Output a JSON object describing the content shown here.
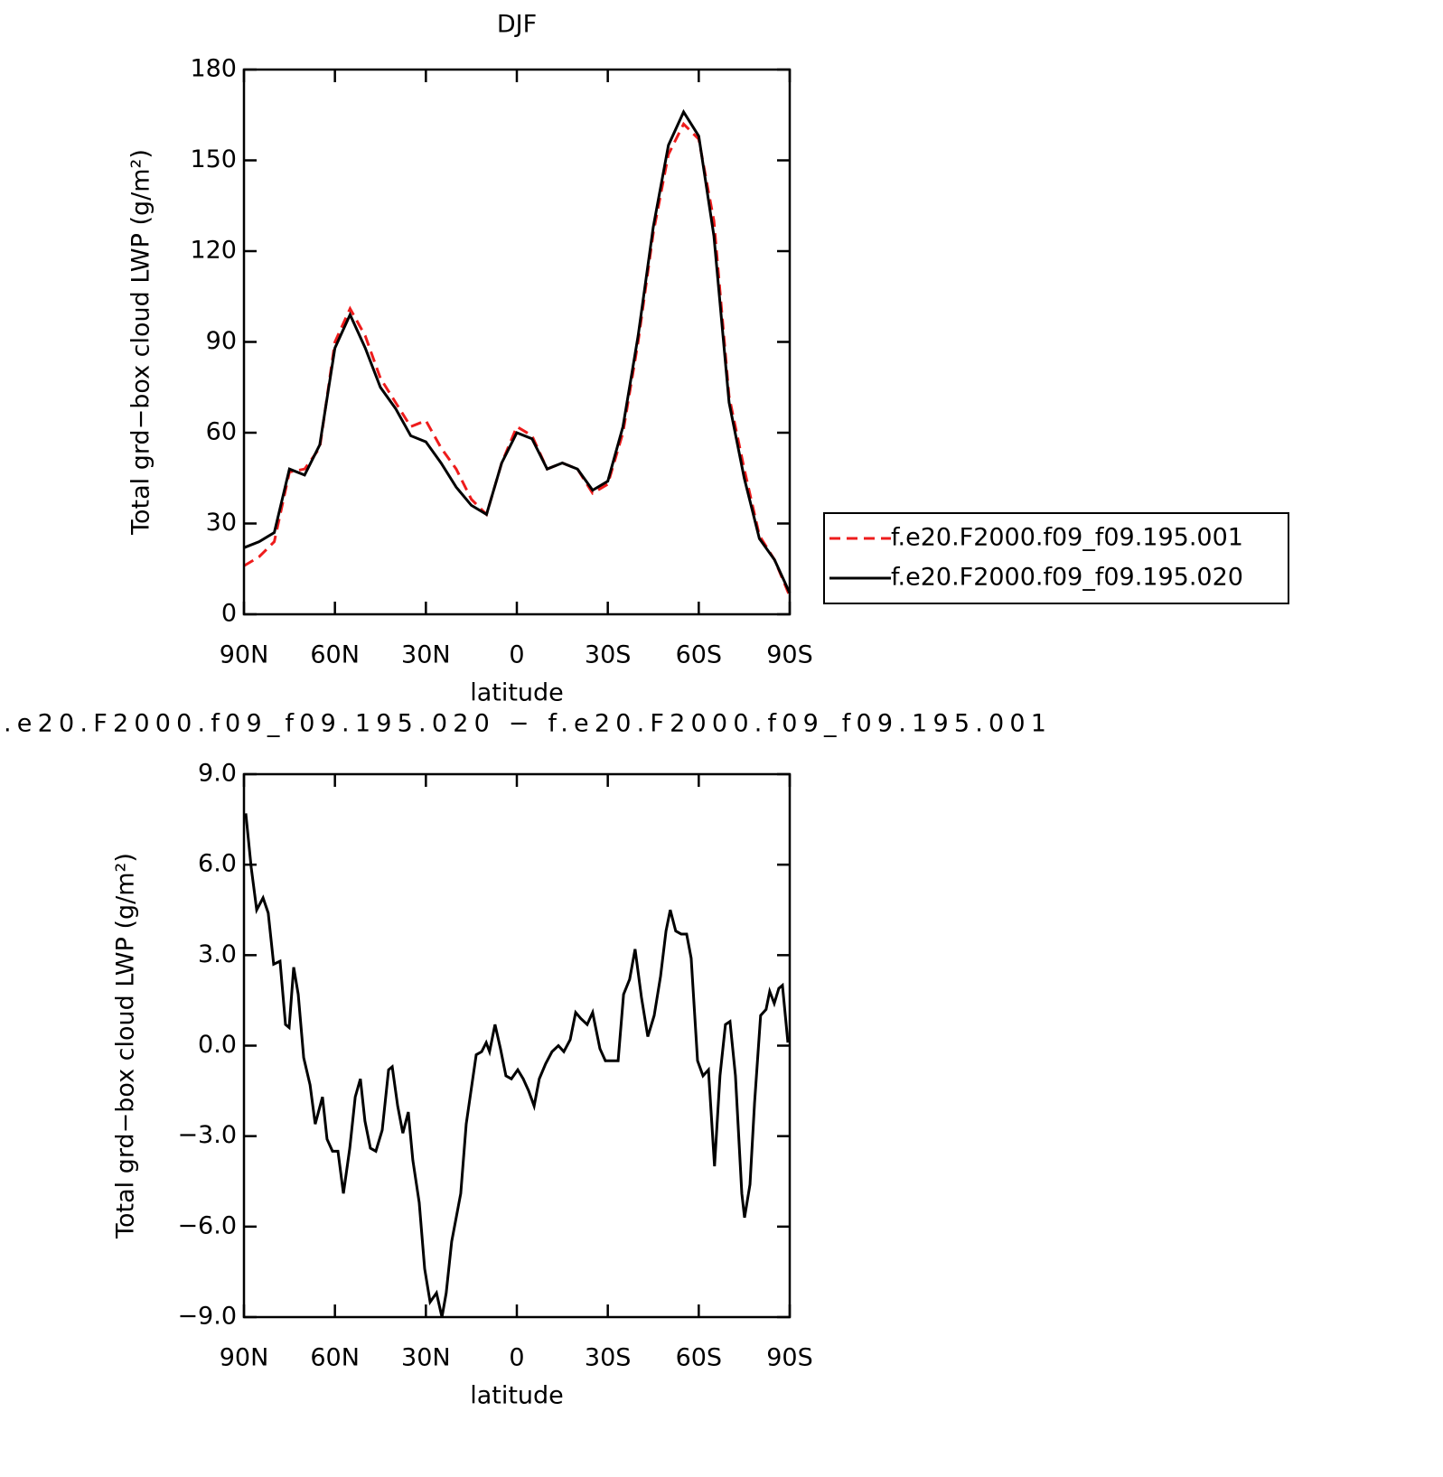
{
  "chart_data": [
    {
      "type": "line",
      "title": "DJF",
      "xlabel": "latitude",
      "ylabel": "Total grd−box cloud LWP (g/m²)",
      "x": [
        90,
        85,
        80,
        75,
        70,
        65,
        60,
        55,
        50,
        45,
        40,
        35,
        30,
        25,
        20,
        15,
        10,
        5,
        0,
        -5,
        -10,
        -15,
        -20,
        -25,
        -30,
        -35,
        -40,
        -45,
        -50,
        -55,
        -60,
        -65,
        -70,
        -75,
        -80,
        -85,
        -90
      ],
      "series": [
        {
          "name": "f.e20.F2000.f09_f09.195.001",
          "color": "#ee1c1c",
          "dashed": true,
          "values": [
            16,
            19,
            24,
            47,
            48,
            55,
            90,
            101,
            92,
            78,
            70,
            62,
            64,
            55,
            48,
            38,
            33,
            50,
            62,
            59,
            48,
            50,
            48,
            40,
            43,
            60,
            90,
            126,
            152,
            162,
            157,
            130,
            72,
            48,
            26,
            18,
            6
          ]
        },
        {
          "name": "f.e20.F2000.f09_f09.195.020",
          "color": "#000000",
          "dashed": false,
          "values": [
            22,
            24,
            27,
            48,
            46,
            56,
            88,
            99,
            88,
            75,
            68,
            59,
            57,
            50,
            42,
            36,
            33,
            50,
            60,
            58,
            48,
            50,
            48,
            41,
            44,
            62,
            92,
            128,
            155,
            166,
            158,
            125,
            70,
            45,
            25,
            18,
            7
          ]
        }
      ],
      "xlim": [
        90,
        -90
      ],
      "xticks": [
        {
          "value": 90,
          "label": "90N"
        },
        {
          "value": 60,
          "label": "60N"
        },
        {
          "value": 30,
          "label": "30N"
        },
        0,
        {
          "value": -30,
          "label": "30S"
        },
        {
          "value": -60,
          "label": "60S"
        },
        {
          "value": -90,
          "label": "90S"
        }
      ],
      "ylim": [
        0,
        180
      ],
      "yticks": [
        0,
        30,
        60,
        90,
        120,
        150,
        180
      ],
      "grid": false,
      "legend": "right"
    },
    {
      "type": "line",
      "title": ".e20.F2000.f09_f09.195.020 − f.e20.F2000.f09_f09.195.001",
      "xlabel": "latitude",
      "ylabel": "Total grd−box cloud LWP (g/m²)",
      "x": [
        89.4,
        87.6,
        85.8,
        83.7,
        82.0,
        80.2,
        78.1,
        76.3,
        75.1,
        73.6,
        72.1,
        70.3,
        68.2,
        66.5,
        64.1,
        62.6,
        60.8,
        59.0,
        57.2,
        55.1,
        53.3,
        51.6,
        50.1,
        48.3,
        46.5,
        44.4,
        42.3,
        41.1,
        39.3,
        37.6,
        35.8,
        34.3,
        32.2,
        30.4,
        28.6,
        26.5,
        24.7,
        23.3,
        21.5,
        18.5,
        16.7,
        13.4,
        11.6,
        10.1,
        9.0,
        7.2,
        5.4,
        3.6,
        1.8,
        -0.3,
        -2.1,
        -3.9,
        -5.7,
        -7.4,
        -9.5,
        -11.6,
        -13.7,
        -15.5,
        -17.6,
        -19.4,
        -21.1,
        -23.2,
        -25.0,
        -27.4,
        -29.2,
        -31.3,
        -33.4,
        -35.2,
        -37.2,
        -39.0,
        -41.1,
        -43.2,
        -45.3,
        -47.4,
        -49.2,
        -50.6,
        -52.4,
        -54.2,
        -56.0,
        -57.5,
        -59.6,
        -61.4,
        -63.2,
        -65.2,
        -67.0,
        -68.8,
        -70.3,
        -72.1,
        -74.2,
        -75.1,
        -76.9,
        -78.4,
        -80.4,
        -82.2,
        -83.4,
        -84.9,
        -86.4,
        -87.6,
        -89.4
      ],
      "values": [
        7.7,
        5.9,
        4.5,
        4.9,
        4.4,
        2.7,
        2.8,
        0.7,
        0.6,
        2.6,
        1.7,
        -0.4,
        -1.3,
        -2.6,
        -1.7,
        -3.1,
        -3.5,
        -3.5,
        -4.9,
        -3.4,
        -1.7,
        -1.1,
        -2.5,
        -3.4,
        -3.5,
        -2.8,
        -0.8,
        -0.7,
        -2.0,
        -2.9,
        -2.2,
        -3.8,
        -5.2,
        -7.4,
        -8.5,
        -8.2,
        -9.0,
        -8.2,
        -6.5,
        -4.9,
        -2.6,
        -0.3,
        -0.2,
        0.1,
        -0.2,
        0.7,
        -0.1,
        -1.0,
        -1.1,
        -0.8,
        -1.1,
        -1.5,
        -2.0,
        -1.1,
        -0.6,
        -0.2,
        0.0,
        -0.2,
        0.2,
        1.1,
        0.9,
        0.7,
        1.1,
        -0.1,
        -0.5,
        -0.5,
        -0.5,
        1.7,
        2.2,
        3.2,
        1.6,
        0.3,
        1.0,
        2.3,
        3.8,
        4.5,
        3.8,
        3.7,
        3.7,
        2.9,
        -0.5,
        -1.0,
        -0.8,
        -4.0,
        -1.0,
        0.7,
        0.8,
        -1.0,
        -4.9,
        -5.7,
        -4.6,
        -1.9,
        1.0,
        1.2,
        1.8,
        1.4,
        1.9,
        2.0,
        0.1
      ],
      "color": "#000000",
      "xlim": [
        90,
        -90
      ],
      "xticks": [
        {
          "value": 90,
          "label": "90N"
        },
        {
          "value": 60,
          "label": "60N"
        },
        {
          "value": 30,
          "label": "30N"
        },
        0,
        {
          "value": -30,
          "label": "30S"
        },
        {
          "value": -60,
          "label": "60S"
        },
        {
          "value": -90,
          "label": "90S"
        }
      ],
      "ylim": [
        -9,
        9
      ],
      "yticks": [
        {
          "value": -9,
          "label": "−9.0"
        },
        {
          "value": -6,
          "label": "−6.0"
        },
        {
          "value": -3,
          "label": "−3.0"
        },
        {
          "value": 0,
          "label": "0.0"
        },
        {
          "value": 3,
          "label": "3.0"
        },
        {
          "value": 6,
          "label": "6.0"
        },
        {
          "value": 9,
          "label": "9.0"
        }
      ],
      "grid": false
    }
  ]
}
